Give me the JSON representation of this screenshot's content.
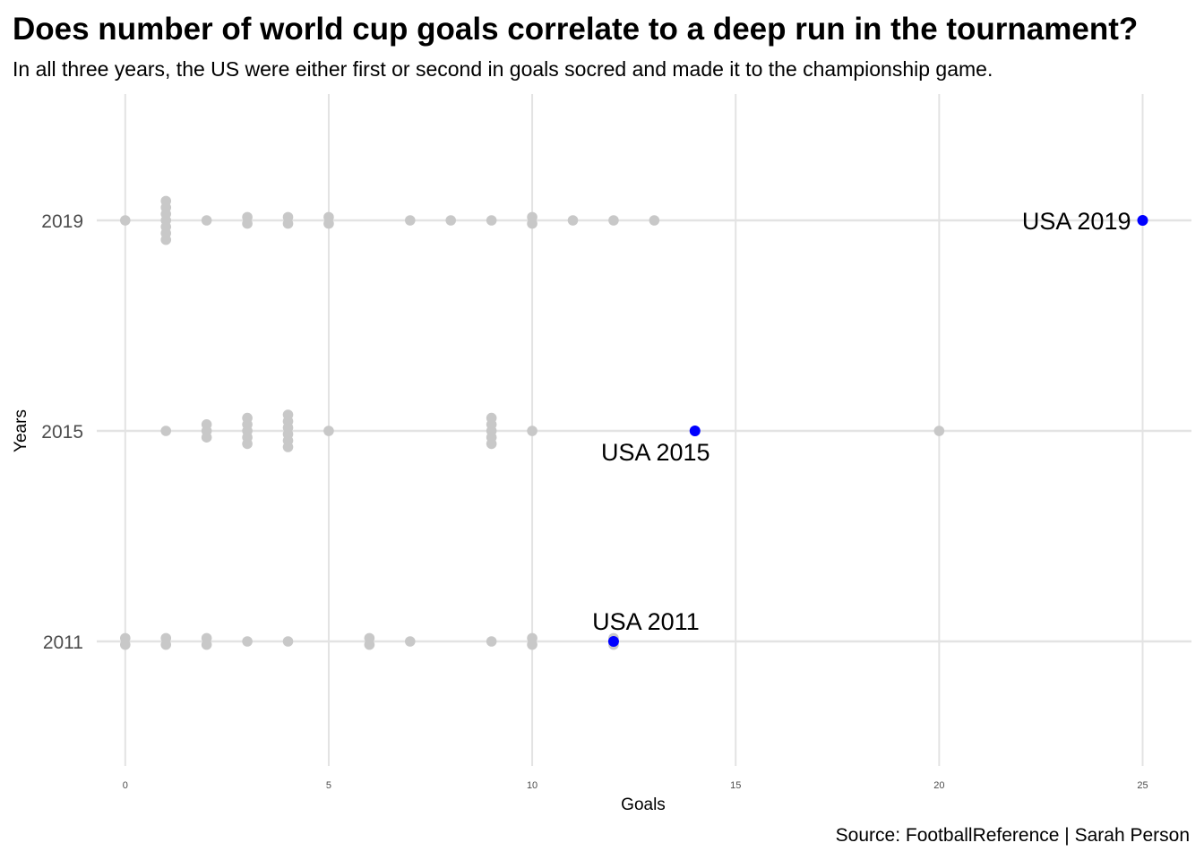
{
  "title": "Does number of world cup goals correlate to a deep run in the tournament?",
  "subtitle": "In all three years, the US were either first or second in goals socred and made it to the championship game.",
  "caption": "Source: FootballReference | Sarah Person",
  "chart_data": {
    "type": "scatter",
    "xlabel": "Goals",
    "ylabel": "Years",
    "xlim": [
      -0.7,
      26.2
    ],
    "x_ticks": [
      0,
      5,
      10,
      15,
      20,
      25
    ],
    "categories": [
      "2011",
      "2015",
      "2019"
    ],
    "grid": true,
    "colors": {
      "other": "#c8c8c8",
      "usa": "#0000ff",
      "grid": "#e3e3e3"
    },
    "series": [
      {
        "year": "2011",
        "values": [
          0,
          0,
          1,
          1,
          2,
          2,
          3,
          4,
          6,
          6,
          7,
          9,
          10,
          10,
          12,
          12
        ]
      },
      {
        "year": "2015",
        "values": [
          1,
          2,
          2,
          2,
          3,
          3,
          3,
          3,
          3,
          4,
          4,
          4,
          4,
          4,
          4,
          5,
          9,
          9,
          9,
          9,
          9,
          10,
          14,
          20
        ]
      },
      {
        "year": "2019",
        "values": [
          0,
          1,
          1,
          1,
          1,
          1,
          1,
          1,
          2,
          3,
          3,
          4,
          4,
          5,
          5,
          7,
          8,
          9,
          10,
          10,
          11,
          12,
          13,
          25
        ]
      }
    ],
    "highlights": [
      {
        "label": "USA 2011",
        "year": "2011",
        "x": 12
      },
      {
        "label": "USA 2015",
        "year": "2015",
        "x": 14
      },
      {
        "label": "USA 2019",
        "year": "2019",
        "x": 25
      }
    ]
  }
}
